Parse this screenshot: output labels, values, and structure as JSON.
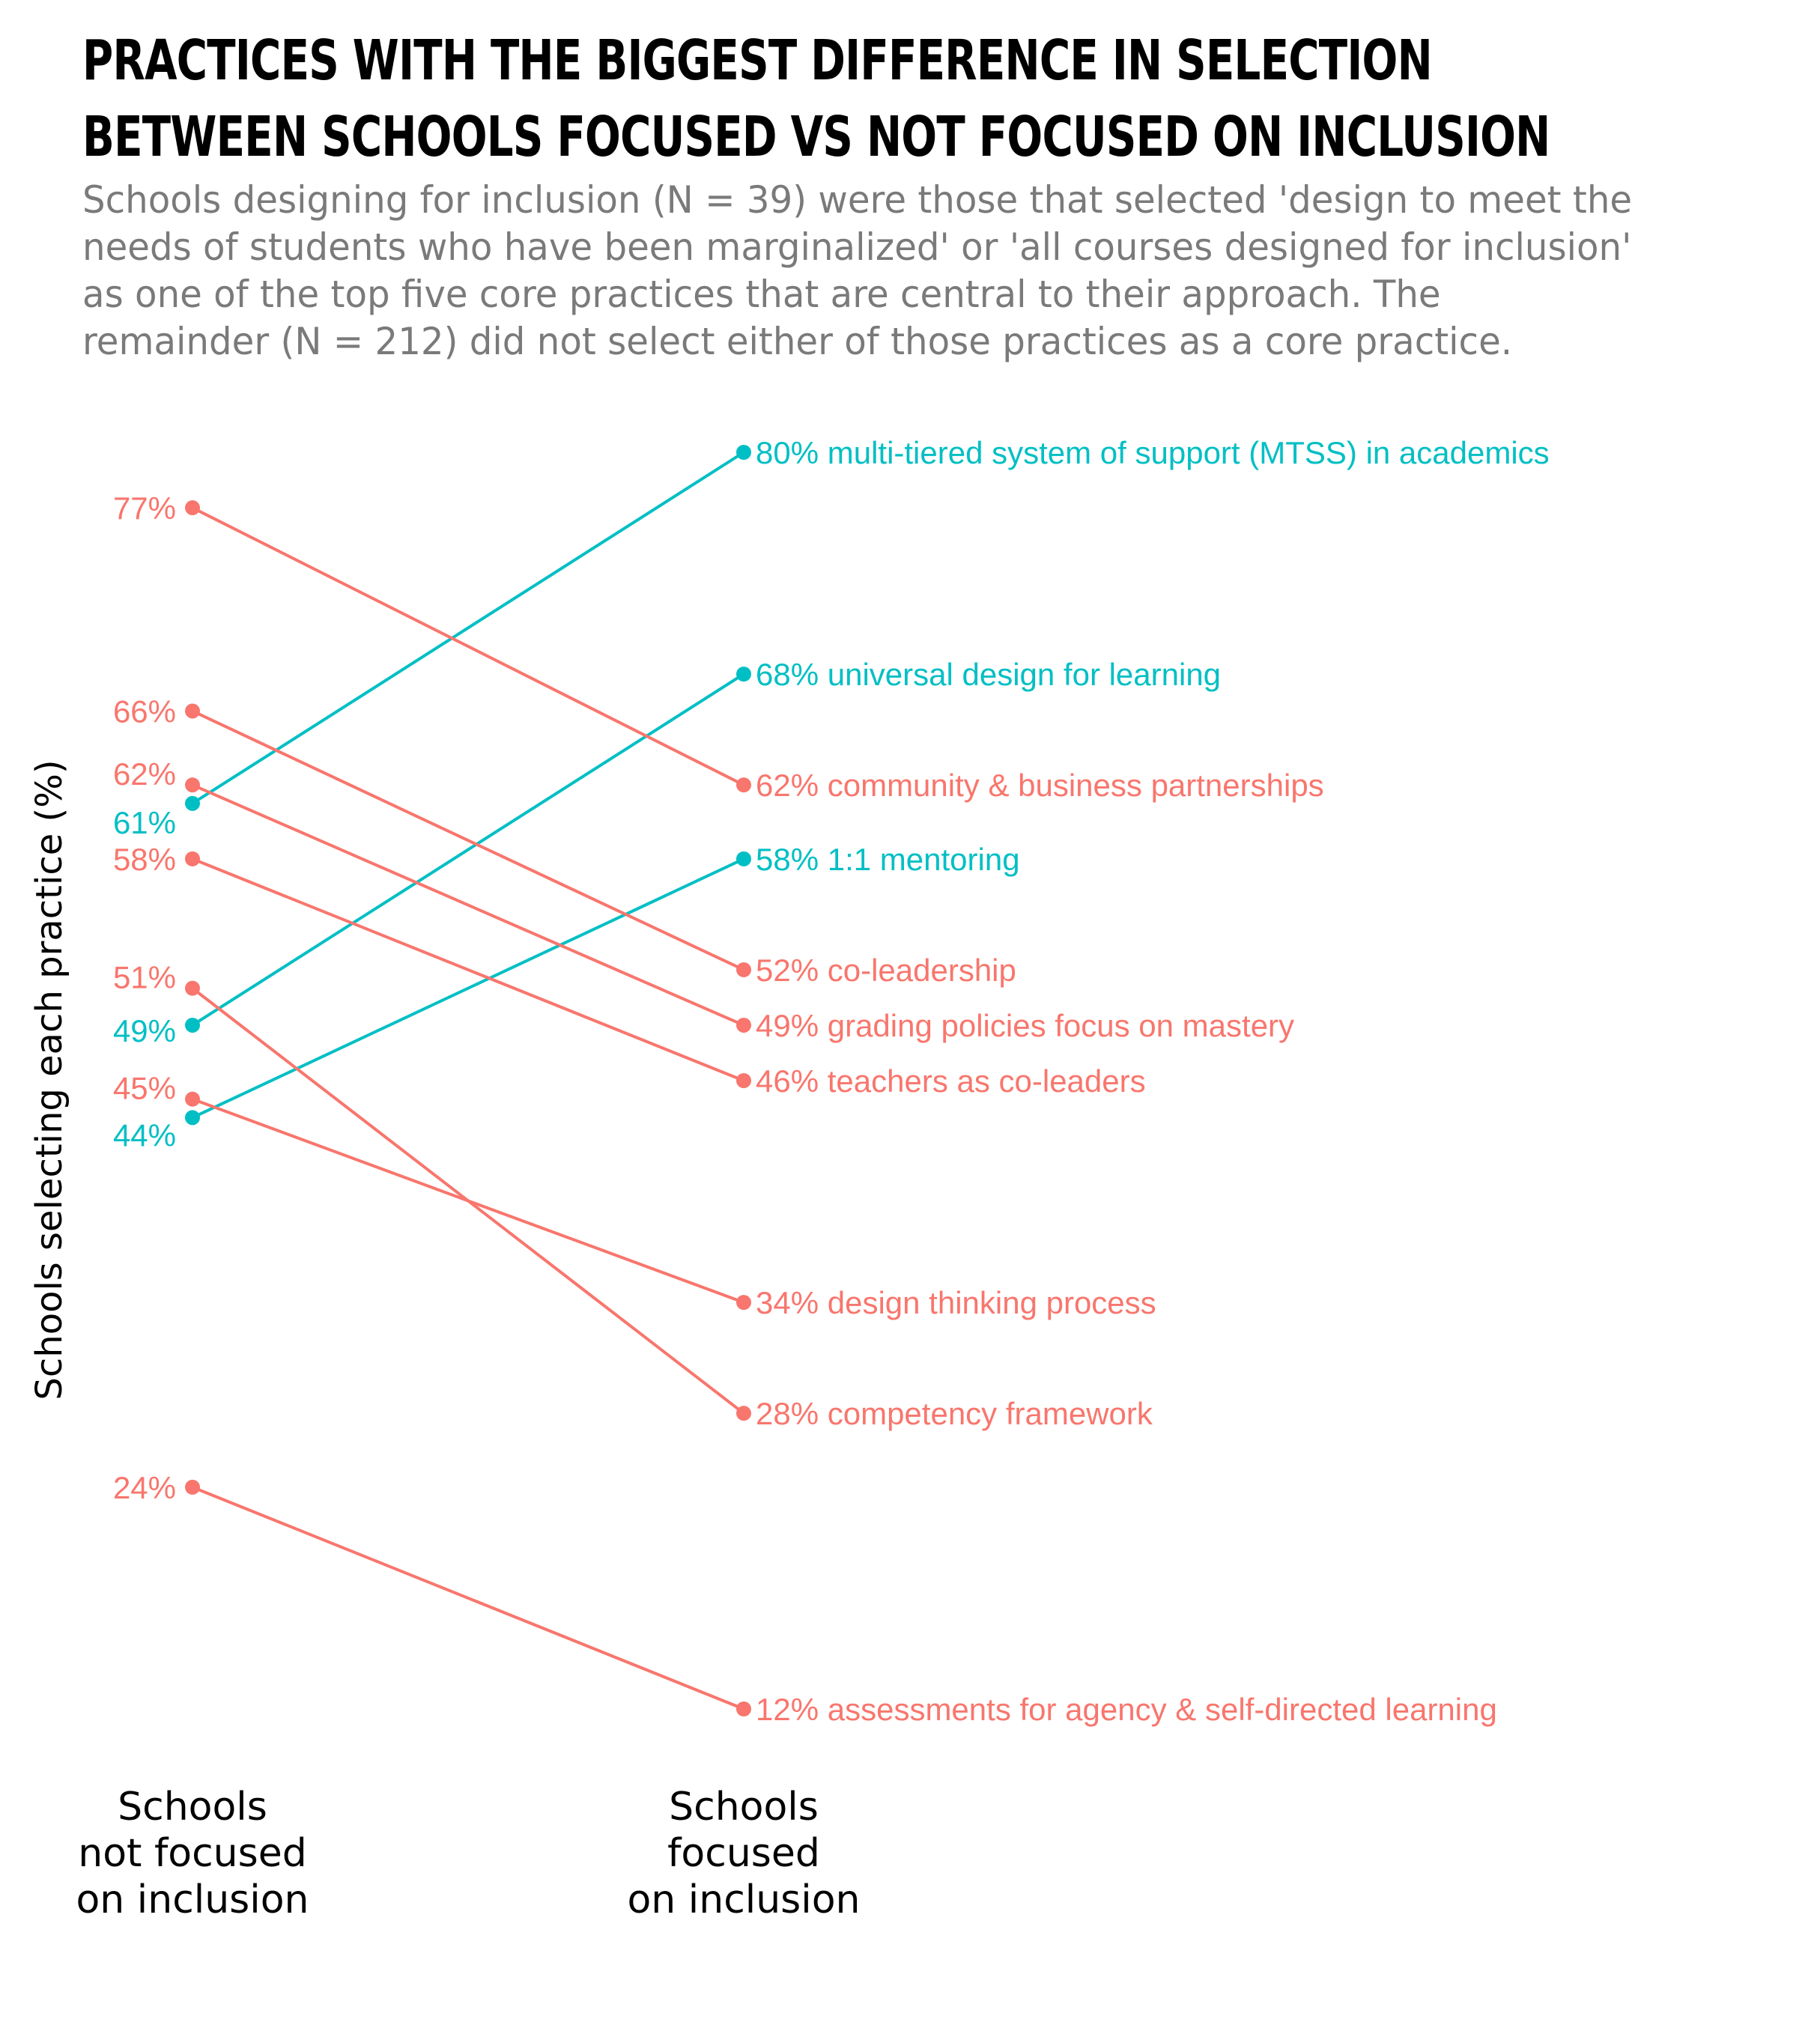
{
  "header": {
    "title_lines": [
      "PRACTICES WITH THE BIGGEST DIFFERENCE IN SELECTION",
      "BETWEEN SCHOOLS FOCUSED VS NOT FOCUSED ON INCLUSION"
    ],
    "subtitle_lines": [
      "Schools designing for inclusion (N = 39) were those that selected 'design to meet the",
      "needs of students who have been marginalized' or 'all courses designed for inclusion'",
      "as one of the top five core practices that are central to their approach. The",
      "remainder (N = 212) did not select either of those practices as a core practice."
    ]
  },
  "colors": {
    "increase": "#00BFC4",
    "decrease": "#F8766D"
  },
  "chart_data": {
    "type": "slope",
    "ylabel": "Schools selecting each practice (%)",
    "x_categories": [
      {
        "key": "not_focused",
        "lines": [
          "Schools",
          "not focused",
          "on inclusion"
        ]
      },
      {
        "key": "focused",
        "lines": [
          "Schools",
          "focused",
          "on inclusion"
        ]
      }
    ],
    "ylim": [
      12,
      80
    ],
    "series": [
      {
        "name": "multi-tiered system of support (MTSS) in academics",
        "not_focused": 61,
        "focused": 80,
        "direction": "increase"
      },
      {
        "name": "universal design for learning",
        "not_focused": 49,
        "focused": 68,
        "direction": "increase"
      },
      {
        "name": "community & business partnerships",
        "not_focused": 77,
        "focused": 62,
        "direction": "decrease"
      },
      {
        "name": "1:1 mentoring",
        "not_focused": 44,
        "focused": 58,
        "direction": "increase"
      },
      {
        "name": "co-leadership",
        "not_focused": 66,
        "focused": 52,
        "direction": "decrease"
      },
      {
        "name": "grading policies focus on mastery",
        "not_focused": 62,
        "focused": 49,
        "direction": "decrease"
      },
      {
        "name": "teachers as co-leaders",
        "not_focused": 58,
        "focused": 46,
        "direction": "decrease"
      },
      {
        "name": "design thinking process",
        "not_focused": 45,
        "focused": 34,
        "direction": "decrease"
      },
      {
        "name": "competency framework",
        "not_focused": 51,
        "focused": 28,
        "direction": "decrease"
      },
      {
        "name": "assessments for agency & self-directed learning",
        "not_focused": 24,
        "focused": 12,
        "direction": "decrease"
      }
    ],
    "left_labels": [
      {
        "text": "77%",
        "value": 77,
        "direction": "decrease"
      },
      {
        "text": "66%",
        "value": 66,
        "direction": "decrease"
      },
      {
        "text": "62%",
        "value": 62,
        "direction": "decrease"
      },
      {
        "text": "61%",
        "value": 61,
        "direction": "increase"
      },
      {
        "text": "58%",
        "value": 58,
        "direction": "decrease"
      },
      {
        "text": "51%",
        "value": 51,
        "direction": "decrease"
      },
      {
        "text": "49%",
        "value": 49,
        "direction": "increase"
      },
      {
        "text": "45%",
        "value": 45,
        "direction": "decrease"
      },
      {
        "text": "44%",
        "value": 44,
        "direction": "increase"
      },
      {
        "text": "24%",
        "value": 24,
        "direction": "decrease"
      }
    ],
    "right_labels": [
      "80% multi-tiered system of support (MTSS) in academics",
      "68% universal design for learning",
      "62% community & business partnerships",
      "58% 1:1 mentoring",
      "52% co-leadership",
      "49% grading policies focus on mastery",
      "46% teachers as co-leaders",
      "34% design thinking process",
      "28% competency framework",
      "12% assessments for agency & self-directed learning"
    ]
  }
}
